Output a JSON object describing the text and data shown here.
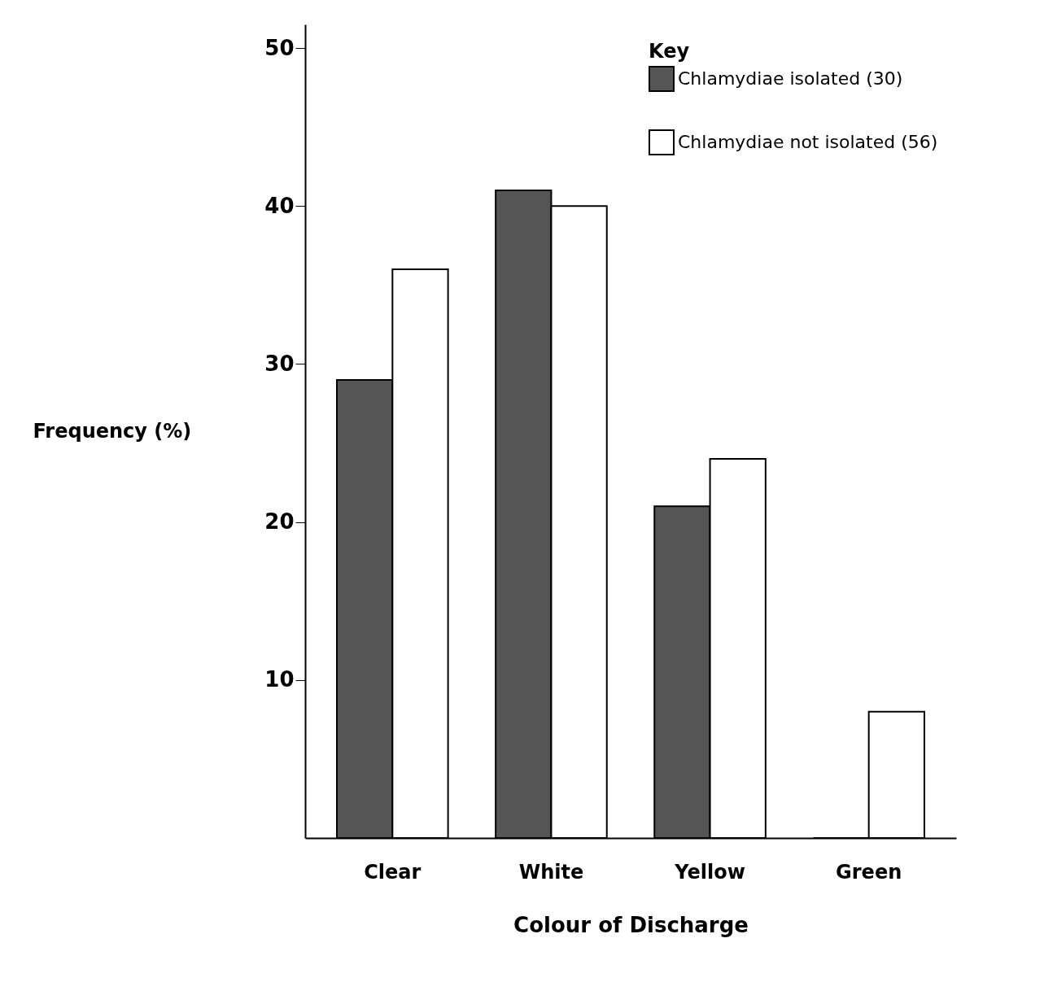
{
  "chart_data": {
    "type": "bar",
    "xlabel": "Colour of Discharge",
    "ylabel": "Frequency (%)",
    "legend_title": "Key",
    "categories": [
      "Clear",
      "White",
      "Yellow",
      "Green"
    ],
    "series": [
      {
        "name": "Chlamydiae isolated (30)",
        "color": "#555555",
        "values": [
          29,
          41,
          21,
          0
        ]
      },
      {
        "name": "Chlamydiae not isolated (56)",
        "color": "#ffffff",
        "values": [
          36,
          40,
          24,
          8
        ]
      }
    ],
    "ylim": [
      0,
      51.5
    ],
    "yticks": [
      10,
      20,
      30,
      40,
      50
    ],
    "grid": false,
    "legend": "top right"
  }
}
